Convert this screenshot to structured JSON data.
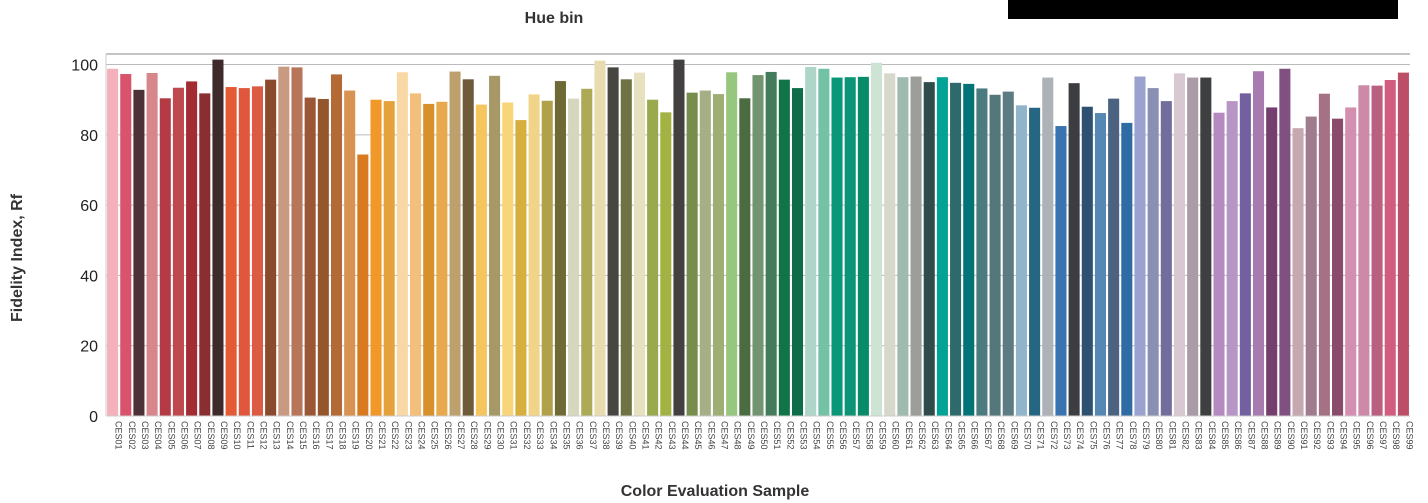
{
  "chart_data": {
    "type": "bar",
    "title": "Hue bin",
    "xlabel": "Color Evaluation Sample",
    "ylabel": "Fidelity Index, Rf",
    "ylim": [
      0,
      103
    ],
    "yticks": [
      0,
      20,
      40,
      60,
      80,
      100
    ],
    "grid": "horizontal",
    "legend_box": "black",
    "categories": [
      "CES01",
      "CES02",
      "CES03",
      "CES04",
      "CES05",
      "CES06",
      "CES07",
      "CES08",
      "CES09",
      "CES10",
      "CES11",
      "CES12",
      "CES13",
      "CES14",
      "CES15",
      "CES16",
      "CES17",
      "CES18",
      "CES19",
      "CES20",
      "CES21",
      "CES22",
      "CES23",
      "CES24",
      "CES25",
      "CES26",
      "CES27",
      "CES28",
      "CES29",
      "CES30",
      "CES31",
      "CES32",
      "CES33",
      "CES34",
      "CES35",
      "CES36",
      "CES37",
      "CES38",
      "CES39",
      "CES40",
      "CES41",
      "CES42",
      "CES43",
      "CES44",
      "CES45",
      "CES46",
      "CES47",
      "CES48",
      "CES49",
      "CES50",
      "CES51",
      "CES52",
      "CES53",
      "CES54",
      "CES55",
      "CES56",
      "CES57",
      "CES58",
      "CES59",
      "CES60",
      "CES61",
      "CES62",
      "CES63",
      "CES64",
      "CES65",
      "CES66",
      "CES67",
      "CES68",
      "CES69",
      "CES70",
      "CES71",
      "CES72",
      "CES73",
      "CES74",
      "CES75",
      "CES76",
      "CES77",
      "CES78",
      "CES79",
      "CES80",
      "CES81",
      "CES82",
      "CES83",
      "CES84",
      "CES85",
      "CES86",
      "CES87",
      "CES88",
      "CES89",
      "CES90",
      "CES91",
      "CES92",
      "CES93",
      "CES94",
      "CES95",
      "CES96",
      "CES97",
      "CES98",
      "CES99"
    ],
    "values": [
      98.8,
      97.3,
      92.8,
      97.6,
      90.4,
      93.4,
      95.2,
      91.8,
      101.4,
      93.6,
      93.3,
      93.8,
      95.7,
      99.4,
      99.2,
      90.6,
      90.2,
      97.2,
      92.6,
      74.4,
      90,
      89.6,
      97.8,
      91.8,
      88.8,
      89.4,
      98,
      95.8,
      88.6,
      96.8,
      89.2,
      84.2,
      91.5,
      89.7,
      95.3,
      90.3,
      93.1,
      101.1,
      99.2,
      95.8,
      97.7,
      90,
      86.4,
      101.4,
      92,
      92.6,
      91.6,
      97.8,
      90.4,
      97,
      97.9,
      95.7,
      93.3,
      99.3,
      98.8,
      96.3,
      96.4,
      96.5,
      100.5,
      97.5,
      96.4,
      96.6,
      95,
      96.4,
      94.8,
      94.5,
      93.2,
      91.4,
      92.3,
      88.4,
      87.7,
      96.3,
      82.5,
      94.7,
      88,
      86.2,
      90.3,
      83.4,
      96.6,
      93.3,
      89.6,
      97.5,
      96.3,
      96.3,
      86.3,
      89.6,
      91.8,
      98.1,
      87.8,
      98.8,
      81.9,
      85.2,
      91.7,
      84.6,
      87.8,
      94.1,
      94,
      95.6,
      97.7
    ],
    "colors": [
      "#f5b1bb",
      "#d9536c",
      "#4c3137",
      "#d7868b",
      "#b43b46",
      "#c0484f",
      "#a32c33",
      "#8a2f31",
      "#3e2a2a",
      "#e45a35",
      "#e0573c",
      "#dc5b42",
      "#8a4a2e",
      "#c89a82",
      "#b7755a",
      "#9b5735",
      "#96562c",
      "#b46a35",
      "#d89251",
      "#d97a1f",
      "#f09828",
      "#e6a23a",
      "#f8d8a4",
      "#f3c07c",
      "#d7902a",
      "#e8a94c",
      "#bea06e",
      "#6f5a3a",
      "#f6c65e",
      "#a79867",
      "#f9d57a",
      "#d7af3e",
      "#f0d589",
      "#b2a14b",
      "#6d6a36",
      "#d7d6bf",
      "#adaa56",
      "#e8dbae",
      "#474640",
      "#707244",
      "#e6e1be",
      "#99a94e",
      "#a3b343",
      "#424040",
      "#768d4b",
      "#a5ae84",
      "#9eae74",
      "#97c67e",
      "#4b6c40",
      "#71956e",
      "#437c5a",
      "#117348",
      "#0c6d48",
      "#aed6c8",
      "#73c2a6",
      "#099679",
      "#0d9476",
      "#078b69",
      "#cde3d3",
      "#d6d8cb",
      "#9fbaae",
      "#9d9e9a",
      "#2f4c4a",
      "#02a296",
      "#2e6a6c",
      "#027478",
      "#4b7b7f",
      "#53777a",
      "#5c7b83",
      "#92b4cb",
      "#266683",
      "#adb2b7",
      "#3a74b0",
      "#3c3d40",
      "#2e5172",
      "#5688b4",
      "#4b6280",
      "#2f6ca4",
      "#9aa3cf",
      "#8a8fb4",
      "#716e9e",
      "#d8c8d2",
      "#a99ca6",
      "#3e3f40",
      "#b58ac0",
      "#b795c4",
      "#7360a0",
      "#a77bb0",
      "#743f6e",
      "#805080",
      "#c5a8b0",
      "#9e7b8d",
      "#a57185",
      "#8a4b6a",
      "#d38eb0",
      "#cc8aa8",
      "#ba5f7f",
      "#d25c80",
      "#bd4e68"
    ]
  }
}
